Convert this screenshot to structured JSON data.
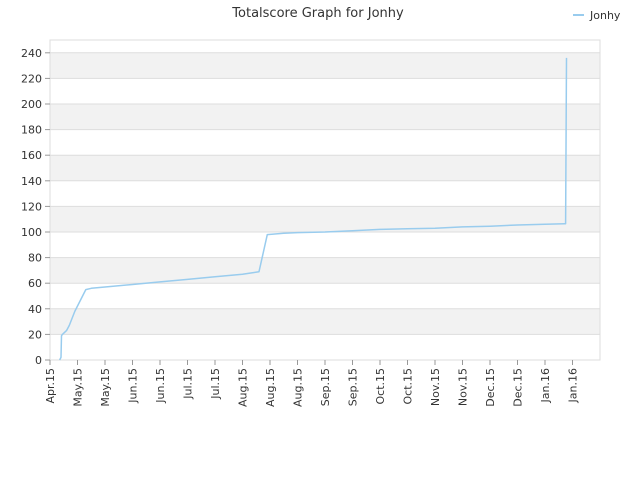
{
  "chart_data": {
    "type": "line",
    "title": "Totalscore Graph for Jonhy",
    "xlabel": "",
    "ylabel": "",
    "ylim": [
      0,
      250
    ],
    "yticks": [
      0,
      20,
      40,
      60,
      80,
      100,
      120,
      140,
      160,
      180,
      200,
      220,
      240
    ],
    "xticks": [
      "Apr.15",
      "May.15",
      "May.15",
      "Jun.15",
      "Jun.15",
      "Jul.15",
      "Jul.15",
      "Aug.15",
      "Aug.15",
      "Aug.15",
      "Sep.15",
      "Sep.15",
      "Oct.15",
      "Oct.15",
      "Nov.15",
      "Nov.15",
      "Dec.15",
      "Dec.15",
      "Jan.16",
      "Jan.16"
    ],
    "grid": true,
    "legend_position": "top-right",
    "colors": {
      "series": "#99ccee",
      "band": "#f2f2f2",
      "grid": "#dddddd"
    },
    "series": [
      {
        "name": "Jonhy",
        "x": [
          0.35,
          0.4,
          0.42,
          0.45,
          0.6,
          0.7,
          0.9,
          1.3,
          1.5,
          2,
          3,
          4,
          5,
          6,
          7,
          7.3,
          7.6,
          7.9,
          8.5,
          9,
          10,
          11,
          12,
          13,
          14,
          15,
          16,
          17,
          18,
          18.7,
          18.75,
          18.78
        ],
        "y": [
          0,
          2,
          19,
          20,
          23,
          27,
          38,
          55,
          56,
          57,
          59,
          61,
          63,
          65,
          67,
          68,
          69,
          98,
          99,
          99.5,
          100,
          101,
          102,
          102.5,
          103,
          104,
          104.5,
          105.5,
          106,
          106.5,
          106.5,
          236
        ]
      }
    ]
  }
}
